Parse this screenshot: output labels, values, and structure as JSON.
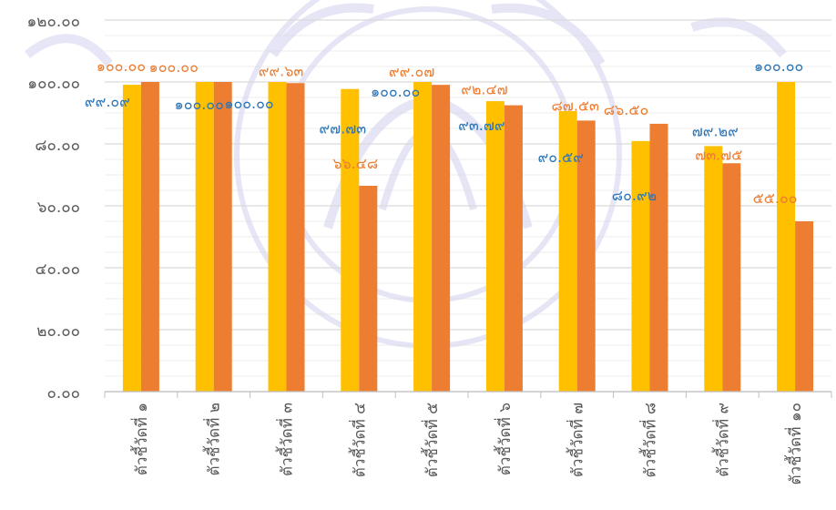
{
  "chart_data": {
    "type": "bar",
    "title": "",
    "xlabel": "",
    "ylabel": "",
    "ylim": [
      0,
      120
    ],
    "grid": true,
    "legend": "none",
    "y_ticks": [
      "๐.๐๐",
      "๒๐.๐๐",
      "๔๐.๐๐",
      "๖๐.๐๐",
      "๘๐.๐๐",
      "๑๐๐.๐๐",
      "๑๒๐.๐๐"
    ],
    "categories": [
      "ตัวชี้วัดที่ ๑",
      "ตัวชี้วัดที่ ๒",
      "ตัวชี้วัดที่ ๓",
      "ตัวชี้วัดที่ ๔",
      "ตัวชี้วัดที่ ๕",
      "ตัวชี้วัดที่ ๖",
      "ตัวชี้วัดที่ ๗",
      "ตัวชี้วัดที่ ๘",
      "ตัวชี้วัดที่ ๙",
      "ตัวชี้วัดที่ ๑๐"
    ],
    "series": [
      {
        "color": "#FFC000",
        "label_color": "#2E75B6",
        "values": [
          99.09,
          100.0,
          100.0,
          97.73,
          100.0,
          93.79,
          90.59,
          80.92,
          79.29,
          100.0
        ],
        "labels": [
          "๙๙.๐๙",
          "๑๐๐.๐๐",
          "๑๐๐.๐๐",
          "๙๗.๗๓",
          "๑๐๐.๐๐",
          "๙๓.๗๙",
          "๙๐.๕๙",
          "๘๐.๙๒",
          "๗๙.๒๙",
          "๑๐๐.๐๐"
        ]
      },
      {
        "color": "#ED7D31",
        "label_color": "#ED7D31",
        "values": [
          100.0,
          100.0,
          99.63,
          66.48,
          99.07,
          92.47,
          87.53,
          86.5,
          73.75,
          55.0
        ],
        "labels": [
          "๑๐๐.๐๐",
          "๑๐๐.๐๐",
          "๙๙.๖๓",
          "๖๖.๔๘",
          "๙๙.๐๗",
          "๙๒.๔๗",
          "๘๗.๕๓",
          "๘๖.๕๐",
          "๗๓.๗๕",
          "๕๕.๐๐"
        ]
      }
    ],
    "colors": {
      "axis": "#BFBFBF",
      "grid": "#D9D9D9",
      "tick_text": "#595959",
      "watermark": "#8C8CD9"
    }
  }
}
